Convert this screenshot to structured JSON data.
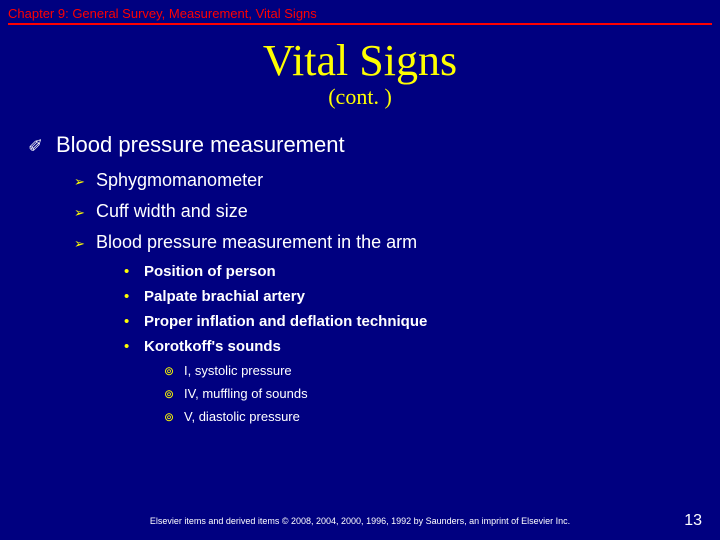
{
  "chapter_header": "Chapter 9: General Survey, Measurement, Vital Signs",
  "title": "Vital Signs",
  "subtitle": "(cont. )",
  "main_point": "Blood pressure measurement",
  "sub_points": [
    "Sphygmomanometer",
    "Cuff width and size",
    "Blood pressure measurement in the arm"
  ],
  "bullets_l3": [
    "Position of person",
    "Palpate brachial artery",
    "Proper inflation and deflation technique",
    "Korotkoff's sounds"
  ],
  "bullets_l4": [
    "I, systolic pressure",
    "IV, muffling of sounds",
    "V, diastolic pressure"
  ],
  "footer": "Elsevier items and derived items © 2008, 2004, 2000, 1996, 1992 by Saunders, an imprint of Elsevier Inc.",
  "page_num": "13",
  "colors": {
    "background": "#000080",
    "header_red": "#ff0000",
    "yellow": "#ffff00",
    "white": "#ffffff"
  },
  "glyphs": {
    "l1": "✐",
    "l2": "➢",
    "l3": "•",
    "l4": "⊚"
  }
}
